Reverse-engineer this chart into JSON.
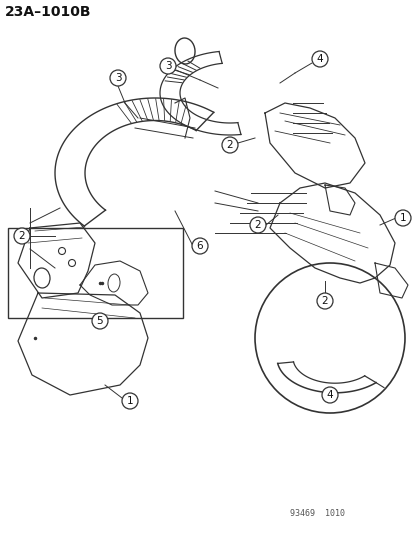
{
  "title": "23A–1010B",
  "bg_color": "#ffffff",
  "line_color": "#333333",
  "text_color": "#111111",
  "watermark": "93469  1010",
  "fig_width": 4.14,
  "fig_height": 5.33,
  "dpi": 100
}
